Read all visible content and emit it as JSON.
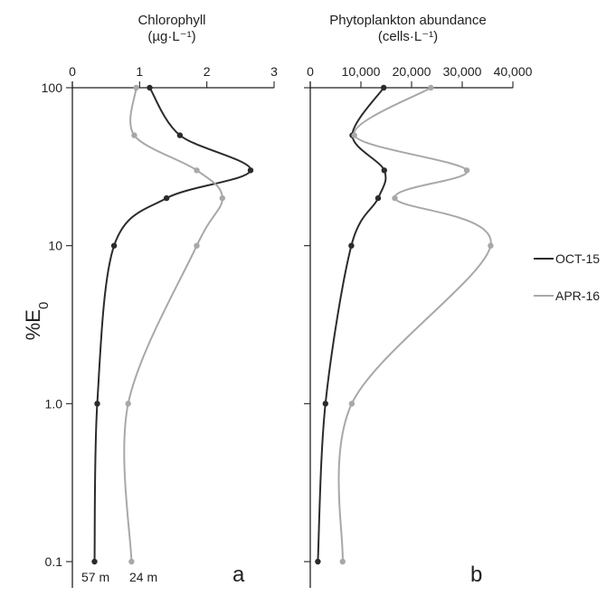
{
  "chart_data": [
    {
      "type": "line",
      "panel": "a",
      "title": "Chlorophyll",
      "subtitle": "(µg·L⁻¹)",
      "xlabel": "Chlorophyll (µg·L⁻¹)",
      "ylabel": "%E₀",
      "xlim": [
        0,
        3
      ],
      "x_ticks": [
        0,
        1,
        2,
        3
      ],
      "x_tick_labels": [
        "0",
        "1",
        "2",
        "3"
      ],
      "x_axis_position": "top",
      "y_scale": "log",
      "ylim": [
        0.1,
        100
      ],
      "y_ticks": [
        0.1,
        1,
        10,
        100
      ],
      "y_tick_labels": [
        "0.1",
        "1.0",
        "10",
        "100"
      ],
      "y_reversed": true,
      "annotations": [
        "57 m",
        "24 m"
      ],
      "series": [
        {
          "name": "OCT-15",
          "color": "#2b2b2b",
          "points": [
            {
              "x": 1.15,
              "y": 100
            },
            {
              "x": 1.6,
              "y": 50
            },
            {
              "x": 2.65,
              "y": 30
            },
            {
              "x": 1.4,
              "y": 20
            },
            {
              "x": 0.62,
              "y": 10
            },
            {
              "x": 0.37,
              "y": 1
            },
            {
              "x": 0.33,
              "y": 0.1
            }
          ]
        },
        {
          "name": "APR-16",
          "color": "#a8a8a8",
          "points": [
            {
              "x": 0.95,
              "y": 100
            },
            {
              "x": 0.92,
              "y": 50
            },
            {
              "x": 1.85,
              "y": 30
            },
            {
              "x": 2.23,
              "y": 20
            },
            {
              "x": 1.85,
              "y": 10
            },
            {
              "x": 0.83,
              "y": 1
            },
            {
              "x": 0.88,
              "y": 0.1
            }
          ]
        }
      ]
    },
    {
      "type": "line",
      "panel": "b",
      "title": "Phytoplankton abundance",
      "subtitle": "(cells·L⁻¹)",
      "xlabel": "Phytoplankton abundance (cells·L⁻¹)",
      "ylabel": "%E₀",
      "xlim": [
        0,
        40000
      ],
      "x_ticks": [
        0,
        10000,
        20000,
        30000,
        40000
      ],
      "x_tick_labels": [
        "0",
        "10,000",
        "20,000",
        "30,000",
        "40,000"
      ],
      "x_axis_position": "top",
      "y_scale": "log",
      "ylim": [
        0.1,
        100
      ],
      "y_ticks": [
        0.1,
        1,
        10,
        100
      ],
      "y_reversed": true,
      "series": [
        {
          "name": "OCT-15",
          "color": "#2b2b2b",
          "points": [
            {
              "x": 14500,
              "y": 100
            },
            {
              "x": 8300,
              "y": 50
            },
            {
              "x": 14600,
              "y": 30
            },
            {
              "x": 13400,
              "y": 20
            },
            {
              "x": 8100,
              "y": 10
            },
            {
              "x": 3000,
              "y": 1
            },
            {
              "x": 1500,
              "y": 0.1
            }
          ]
        },
        {
          "name": "APR-16",
          "color": "#a8a8a8",
          "points": [
            {
              "x": 23800,
              "y": 100
            },
            {
              "x": 8700,
              "y": 50
            },
            {
              "x": 30900,
              "y": 30
            },
            {
              "x": 16700,
              "y": 20
            },
            {
              "x": 35600,
              "y": 10
            },
            {
              "x": 8200,
              "y": 1
            },
            {
              "x": 6400,
              "y": 0.1
            }
          ]
        }
      ]
    }
  ],
  "legend": {
    "placement": "right",
    "items": [
      {
        "label": "OCT-15",
        "color": "#2b2b2b"
      },
      {
        "label": "APR-16",
        "color": "#a8a8a8"
      }
    ]
  }
}
